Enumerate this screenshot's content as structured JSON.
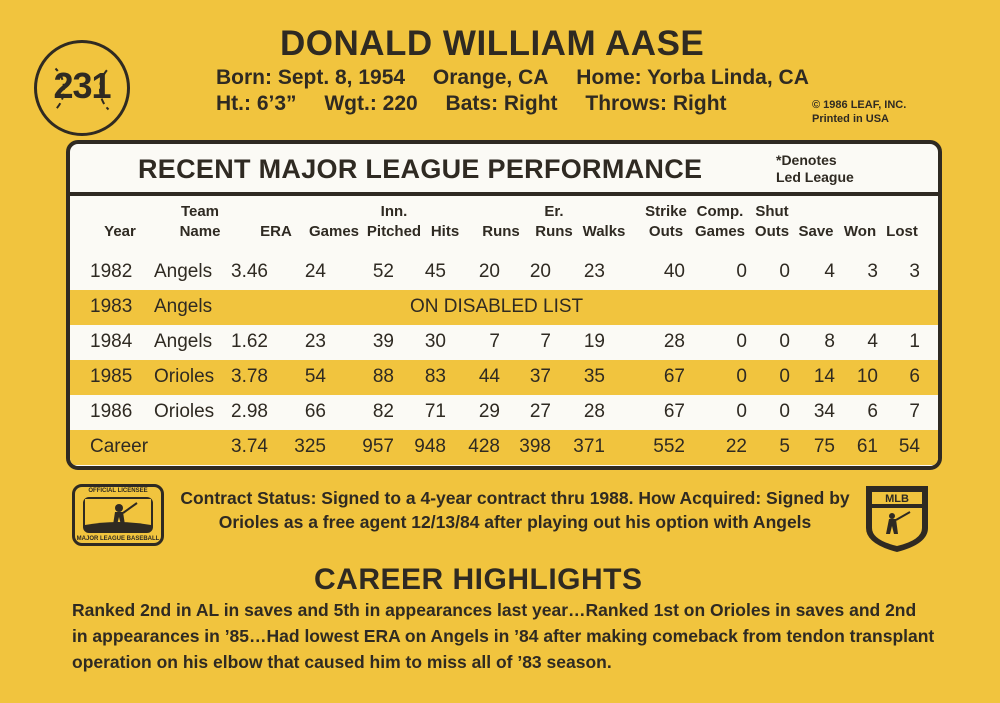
{
  "card_number": "231",
  "player_name": "DONALD WILLIAM AASE",
  "bio": {
    "born": "Born: Sept. 8, 1954",
    "birthplace": "Orange, CA",
    "home": "Home: Yorba Linda, CA",
    "height": "Ht.: 6’3”",
    "weight": "Wgt.: 220",
    "bats": "Bats: Right",
    "throws": "Throws: Right"
  },
  "copyright": [
    "© 1986 LEAF, INC.",
    "Printed in USA"
  ],
  "stats": {
    "title": "RECENT MAJOR LEAGUE PERFORMANCE",
    "note": [
      "*Denotes",
      "Led League"
    ],
    "headers": [
      [
        "",
        "Year"
      ],
      [
        "Team",
        "Name"
      ],
      [
        "",
        "ERA"
      ],
      [
        "",
        "Games"
      ],
      [
        "Inn.",
        "Pitched"
      ],
      [
        "",
        "Hits"
      ],
      [
        "",
        "Runs"
      ],
      [
        "Er.",
        "Runs"
      ],
      [
        "",
        "Walks"
      ],
      [
        "Strike",
        "Outs"
      ],
      [
        "Comp.",
        "Games"
      ],
      [
        "Shut",
        "Outs"
      ],
      [
        "",
        "Save"
      ],
      [
        "",
        "Won"
      ],
      [
        "",
        "Lost"
      ]
    ],
    "rows": [
      [
        "1982",
        "Angels",
        "3.46",
        "24",
        "52",
        "45",
        "20",
        "20",
        "23",
        "40",
        "0",
        "0",
        "4",
        "3",
        "3"
      ],
      [
        "1983",
        "Angels"
      ],
      [
        "1984",
        "Angels",
        "1.62",
        "23",
        "39",
        "30",
        "7",
        "7",
        "19",
        "28",
        "0",
        "0",
        "8",
        "4",
        "1"
      ],
      [
        "1985",
        "Orioles",
        "3.78",
        "54",
        "88",
        "83",
        "44",
        "37",
        "35",
        "67",
        "0",
        "0",
        "14",
        "10",
        "6"
      ],
      [
        "1986",
        "Orioles",
        "2.98",
        "66",
        "82",
        "71",
        "29",
        "27",
        "28",
        "67",
        "0",
        "0",
        "34",
        "6",
        "7"
      ],
      [
        "Career",
        "",
        "3.74",
        "325",
        "957",
        "948",
        "428",
        "398",
        "371",
        "552",
        "22",
        "5",
        "75",
        "61",
        "54"
      ]
    ],
    "disabled_text": "ON DISABLED LIST"
  },
  "mlb_logo": {
    "top": "OFFICIAL LICENSEE",
    "bottom": "MAJOR LEAGUE BASEBALL"
  },
  "mlbpa_logo": "MLB",
  "contract": "Contract Status: Signed to a 4-year contract thru 1988. How Acquired: Signed by Orioles as a free agent 12/13/84 after playing out his option with Angels",
  "highlights_title": "CAREER HIGHLIGHTS",
  "highlights": "Ranked 2nd in AL in saves and 5th in appearances last year…Ranked 1st on Orioles in saves and 2nd in appearances in ’85…Had lowest ERA on Angels in ’84 after making comeback from tendon transplant operation on his elbow that caused him to miss all of ’83 season.",
  "colors": {
    "card": "#f1c43e",
    "ink": "#2f2a22",
    "stat_bg": "#fbfaf5"
  }
}
